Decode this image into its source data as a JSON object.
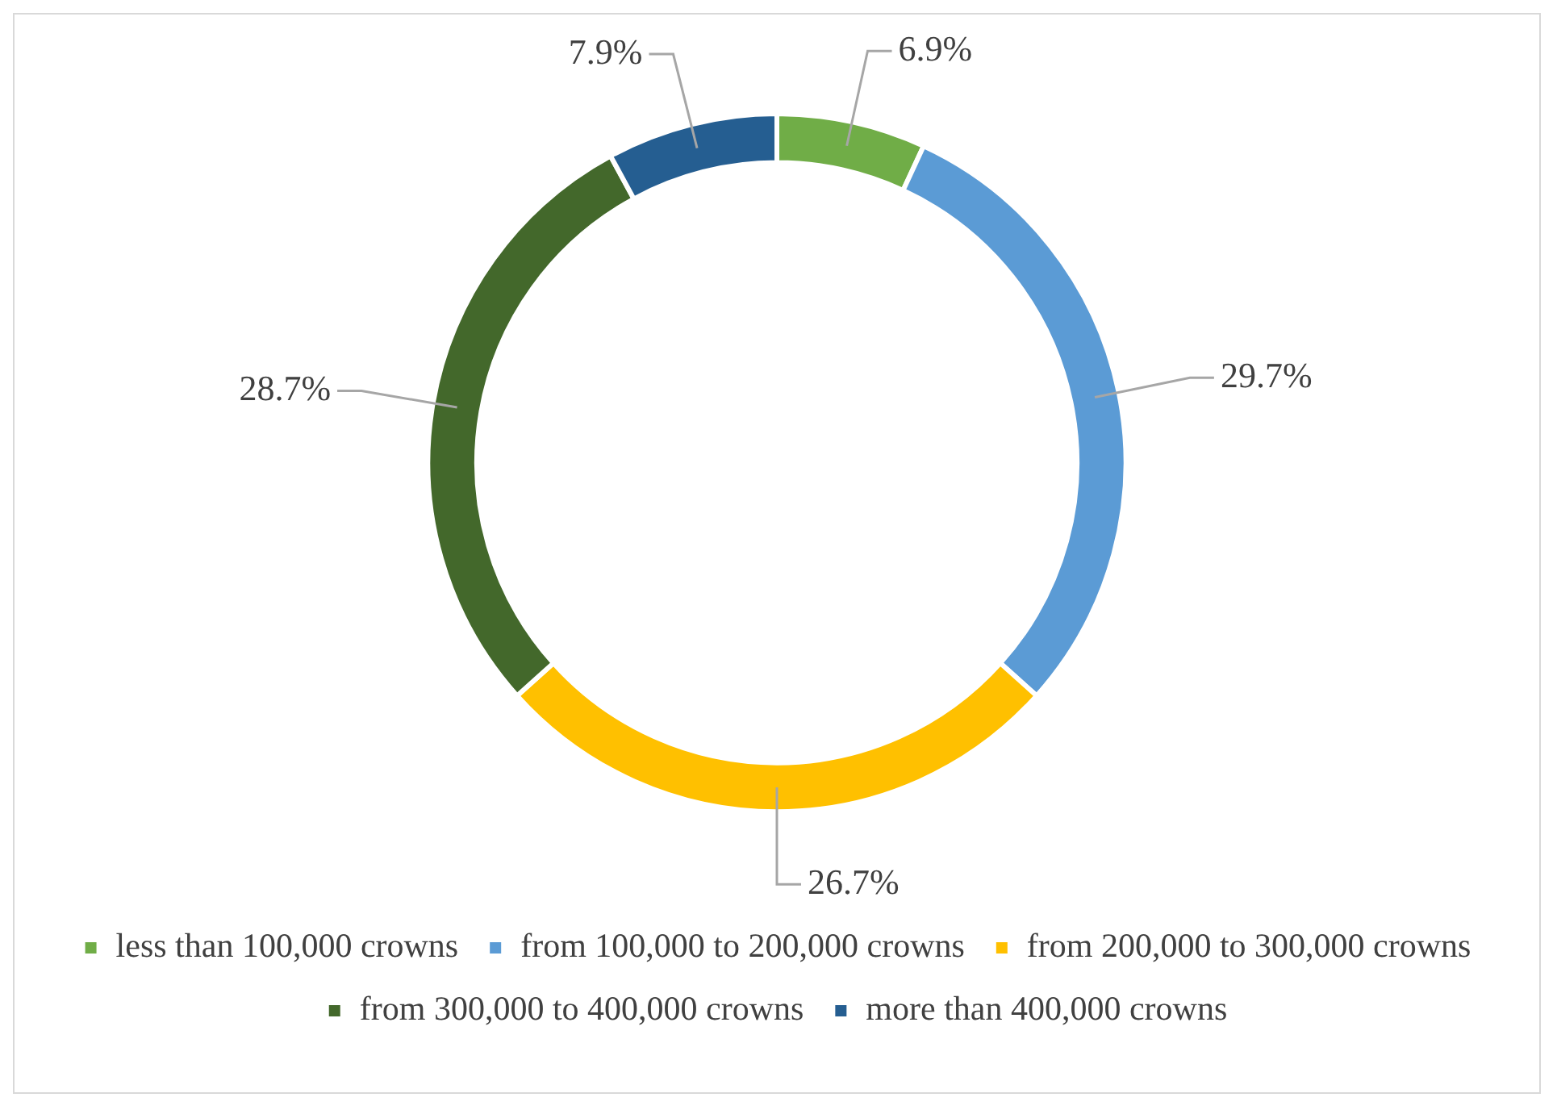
{
  "chart_data": {
    "type": "donut",
    "categories": [
      "less than 100,000 crowns",
      "from 100,000 to 200,000 crowns",
      "from 200,000 to 300,000 crowns",
      "from 300,000 to 400,000 crowns",
      "more than 400,000 crowns"
    ],
    "values": [
      6.9,
      29.7,
      26.7,
      28.7,
      7.9
    ],
    "value_labels": [
      "6.9%",
      "29.7%",
      "26.7%",
      "28.7%",
      "7.9%"
    ],
    "colors": [
      "#70ad47",
      "#5b9bd5",
      "#ffc000",
      "#43682b",
      "#255e91"
    ],
    "legend": "bottom"
  }
}
